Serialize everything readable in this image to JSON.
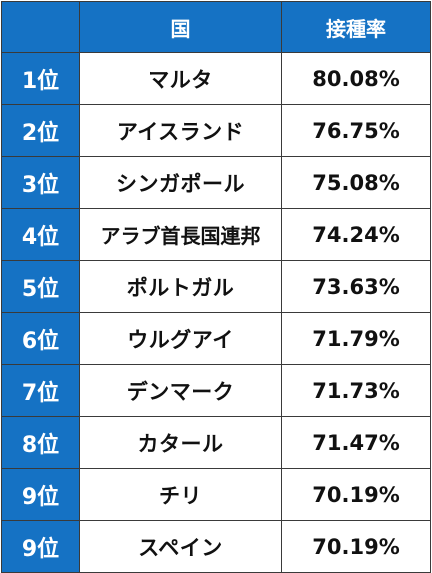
{
  "header": {
    "rank_label": "",
    "country_label": "国",
    "rate_label": "接種率"
  },
  "rows": [
    {
      "rank": "1位",
      "country": "マルタ",
      "rate": "80.08%"
    },
    {
      "rank": "2位",
      "country": "アイスランド",
      "rate": "76.75%"
    },
    {
      "rank": "3位",
      "country": "シンガポール",
      "rate": "75.08%"
    },
    {
      "rank": "4位",
      "country": "アラブ首長国連邦",
      "rate": "74.24%"
    },
    {
      "rank": "5位",
      "country": "ポルトガル",
      "rate": "73.63%"
    },
    {
      "rank": "6位",
      "country": "ウルグアイ",
      "rate": "71.79%"
    },
    {
      "rank": "7位",
      "country": "デンマーク",
      "rate": "71.73%"
    },
    {
      "rank": "8位",
      "country": "カタール",
      "rate": "71.47%"
    },
    {
      "rank": "9位",
      "country": "チリ",
      "rate": "70.19%"
    },
    {
      "rank": "9位",
      "country": "スペイン",
      "rate": "70.19%"
    }
  ],
  "colors": {
    "header_bg": "#1572c4",
    "header_text": "#ffffff",
    "cell_bg": "#ffffff",
    "border": "#3a3a3a"
  }
}
